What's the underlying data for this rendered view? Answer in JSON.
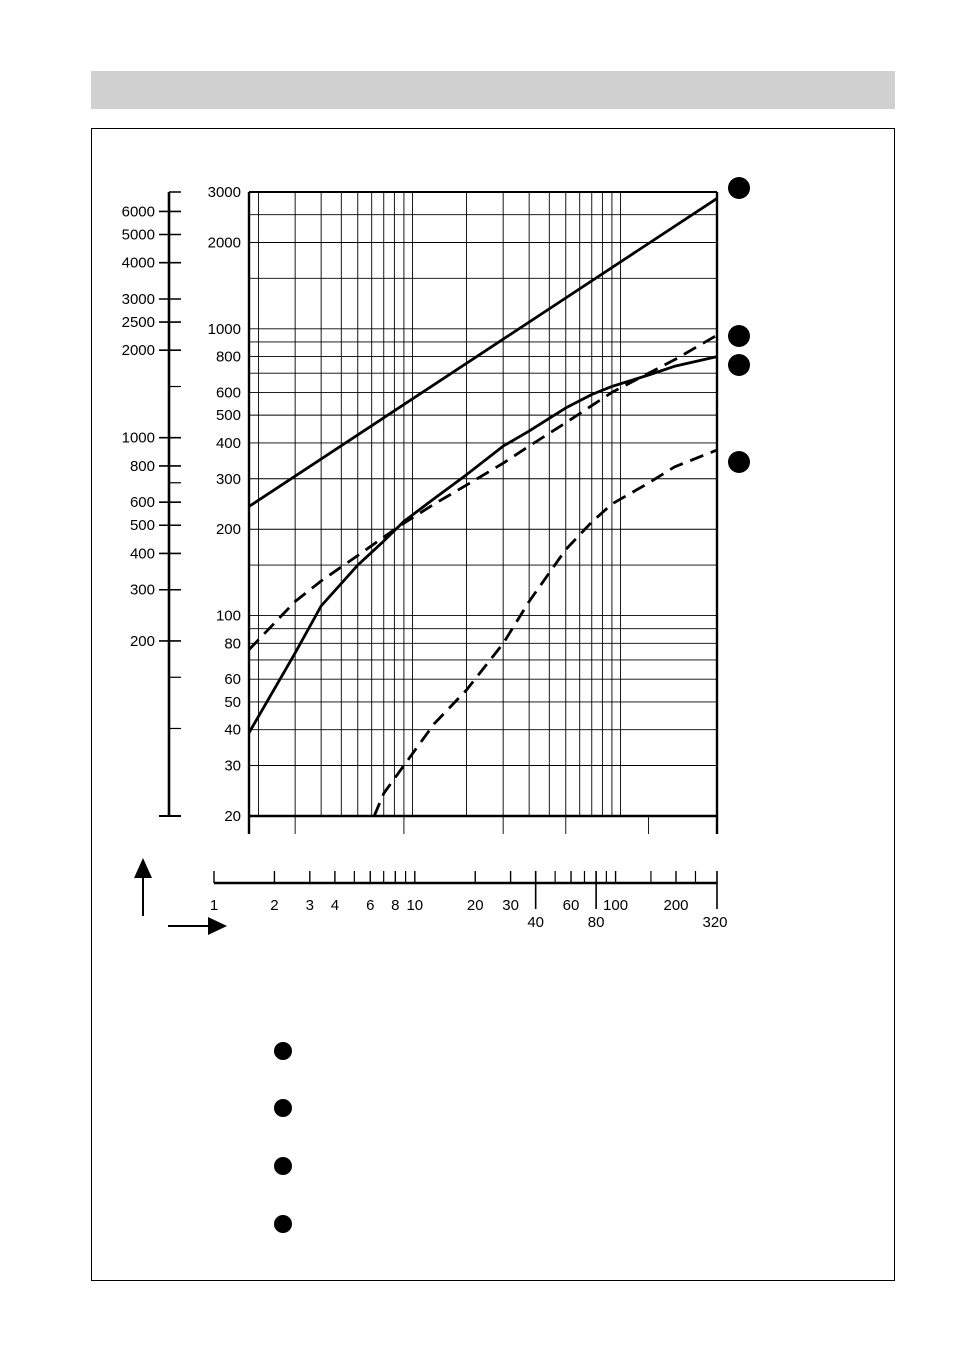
{
  "page": {
    "header_color": "#d0d0d0"
  },
  "chart_data": {
    "type": "line",
    "xscale": "log",
    "yscale": "log",
    "xlim": [
      1.8,
      320
    ],
    "ylim": [
      20,
      3000
    ],
    "grid": true,
    "grid_x": [
      1.8,
      2,
      3,
      4,
      5,
      6,
      7,
      8,
      9,
      10,
      11,
      20,
      30,
      40,
      50,
      60,
      70,
      80,
      90,
      100,
      110,
      320
    ],
    "grid_y": [
      20,
      30,
      40,
      50,
      60,
      70,
      80,
      90,
      100,
      150,
      200,
      300,
      400,
      500,
      600,
      700,
      800,
      900,
      1000,
      1500,
      2000,
      2500,
      3000
    ],
    "y_ticks": [
      "3000",
      "2000",
      "1000",
      "800",
      "600",
      "500",
      "400",
      "300",
      "200",
      "100",
      "80",
      "60",
      "50",
      "40",
      "30",
      "20"
    ],
    "secondary_y_ticks": [
      "6000",
      "5000",
      "4000",
      "3000",
      "2500",
      "2000",
      "1000",
      "800",
      "600",
      "500",
      "400",
      "300",
      "200"
    ],
    "secondary_y_values": [
      6000,
      5000,
      4000,
      3000,
      2500,
      2000,
      1000,
      800,
      600,
      500,
      400,
      300,
      200
    ],
    "secondary_y_minor": [
      1500,
      700,
      150,
      100
    ],
    "secondary_ylim": [
      50,
      7000
    ],
    "x_ticks_upper": [
      "1",
      "2",
      "3",
      "4",
      "6",
      "8",
      "10",
      "20",
      "30",
      "60",
      "100",
      "200"
    ],
    "x_ticks_upper_values": [
      1,
      2,
      3,
      4,
      6,
      8,
      10,
      20,
      30,
      60,
      100,
      200
    ],
    "x_ticks_lower": [
      "40",
      "80",
      "320"
    ],
    "x_ticks_lower_values": [
      40,
      80,
      320
    ],
    "x_minor_ticks": [
      5,
      7,
      9,
      50,
      70,
      90,
      150,
      250
    ],
    "xaxis2_lim": [
      1,
      320
    ],
    "series": [
      {
        "style": "solid",
        "x": [
          1.8,
          320
        ],
        "y": [
          240,
          2850
        ]
      },
      {
        "style": "solid",
        "x": [
          1.8,
          3,
          4,
          6,
          8,
          10,
          14,
          20,
          30,
          40,
          60,
          80,
          100,
          150,
          200,
          320
        ],
        "y": [
          39,
          74,
          108,
          150,
          182,
          213,
          256,
          310,
          390,
          440,
          530,
          590,
          630,
          690,
          740,
          800
        ]
      },
      {
        "style": "dashed",
        "x": [
          1.8,
          3,
          4,
          6,
          8,
          10,
          14,
          20,
          30,
          40,
          60,
          80,
          100,
          150,
          200,
          320
        ],
        "y": [
          76,
          112,
          132,
          162,
          188,
          210,
          245,
          285,
          340,
          390,
          470,
          540,
          600,
          700,
          780,
          950
        ]
      },
      {
        "style": "dashed",
        "x": [
          7.2,
          8,
          10,
          14,
          20,
          30,
          40,
          60,
          80,
          100,
          150,
          200,
          320
        ],
        "y": [
          20,
          24,
          30,
          42,
          55,
          80,
          112,
          170,
          212,
          245,
          290,
          330,
          378
        ]
      }
    ],
    "curve_markers": 4,
    "legend_markers": 4,
    "axis_arrows": [
      "up",
      "right"
    ]
  }
}
